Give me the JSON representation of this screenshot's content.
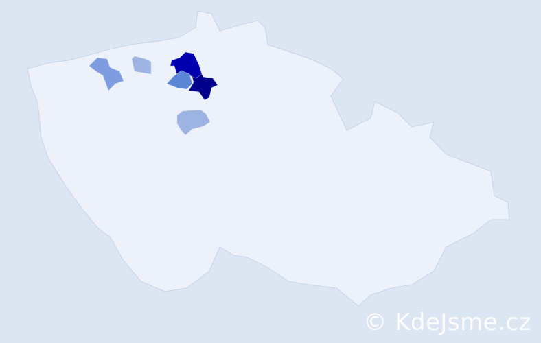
{
  "map": {
    "colors": {
      "background": "#dce6f2",
      "land": "#edf1f9",
      "border": "#c8d2ea",
      "level_highest": "#00008b",
      "level_high": "#0000b0",
      "level_mid": "#5b86d6",
      "level_low": "#7d9de0",
      "level_lowest": "#9db3e2"
    },
    "highlighted_regions": [
      {
        "level": "level_highest"
      },
      {
        "level": "level_high"
      },
      {
        "level": "level_mid"
      },
      {
        "level": "level_low"
      },
      {
        "level": "level_lowest"
      },
      {
        "level": "level_lowest"
      }
    ]
  },
  "watermark": "© KdeJsme.cz"
}
